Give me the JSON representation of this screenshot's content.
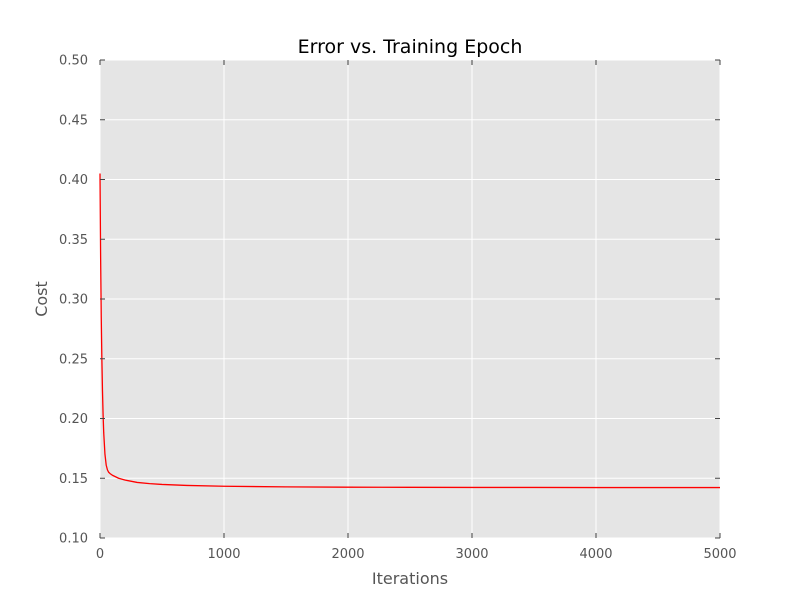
{
  "chart_data": {
    "type": "line",
    "title": "Error vs. Training Epoch",
    "xlabel": "Iterations",
    "ylabel": "Cost",
    "xlim": [
      0,
      5000
    ],
    "ylim": [
      0.1,
      0.5
    ],
    "xticks": [
      "0",
      "1000",
      "2000",
      "3000",
      "4000",
      "5000"
    ],
    "yticks": [
      "0.10",
      "0.15",
      "0.20",
      "0.25",
      "0.30",
      "0.35",
      "0.40",
      "0.45",
      "0.50"
    ],
    "grid": true,
    "legend": "none",
    "colors": {
      "plot_background": "#e5e5e5",
      "grid": "#ffffff",
      "line": "#ff0000",
      "text": "#555555"
    },
    "series": [
      {
        "color": "#ff0000",
        "x": [
          0,
          5,
          10,
          15,
          20,
          25,
          30,
          40,
          50,
          60,
          70,
          80,
          100,
          150,
          200,
          300,
          400,
          500,
          700,
          1000,
          1500,
          2000,
          2500,
          3000,
          3500,
          4000,
          4500,
          5000
        ],
        "y": [
          0.405,
          0.335,
          0.285,
          0.25,
          0.223,
          0.203,
          0.188,
          0.17,
          0.161,
          0.157,
          0.155,
          0.154,
          0.1525,
          0.15,
          0.1485,
          0.1465,
          0.1455,
          0.1448,
          0.144,
          0.1433,
          0.1428,
          0.1425,
          0.1424,
          0.1423,
          0.1423,
          0.1422,
          0.1422,
          0.1422
        ]
      }
    ]
  }
}
